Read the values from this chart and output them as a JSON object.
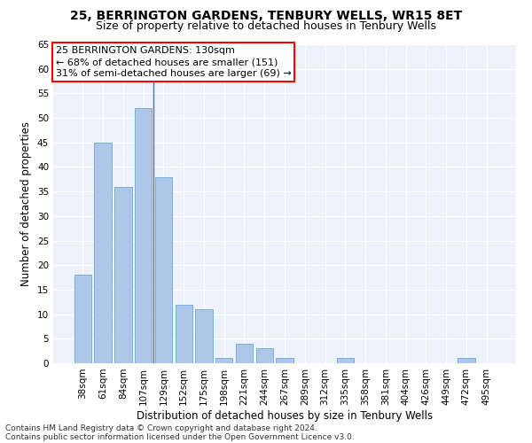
{
  "title1": "25, BERRINGTON GARDENS, TENBURY WELLS, WR15 8ET",
  "title2": "Size of property relative to detached houses in Tenbury Wells",
  "xlabel": "Distribution of detached houses by size in Tenbury Wells",
  "ylabel": "Number of detached properties",
  "categories": [
    "38sqm",
    "61sqm",
    "84sqm",
    "107sqm",
    "129sqm",
    "152sqm",
    "175sqm",
    "198sqm",
    "221sqm",
    "244sqm",
    "267sqm",
    "289sqm",
    "312sqm",
    "335sqm",
    "358sqm",
    "381sqm",
    "404sqm",
    "426sqm",
    "449sqm",
    "472sqm",
    "495sqm"
  ],
  "values": [
    18,
    45,
    36,
    52,
    38,
    12,
    11,
    1,
    4,
    3,
    1,
    0,
    0,
    1,
    0,
    0,
    0,
    0,
    0,
    1,
    0
  ],
  "bar_color": "#aec6e8",
  "bar_edge_color": "#6aaad4",
  "vline_x": 3.5,
  "vline_color": "#4472c4",
  "annotation_text": "25 BERRINGTON GARDENS: 130sqm\n← 68% of detached houses are smaller (151)\n31% of semi-detached houses are larger (69) →",
  "annotation_box_color": "white",
  "annotation_box_edge_color": "red",
  "bg_color": "#eef2fb",
  "grid_color": "white",
  "ylim": [
    0,
    65
  ],
  "yticks": [
    0,
    5,
    10,
    15,
    20,
    25,
    30,
    35,
    40,
    45,
    50,
    55,
    60,
    65
  ],
  "footer1": "Contains HM Land Registry data © Crown copyright and database right 2024.",
  "footer2": "Contains public sector information licensed under the Open Government Licence v3.0.",
  "title_fontsize": 10,
  "subtitle_fontsize": 9,
  "axis_label_fontsize": 8.5,
  "tick_fontsize": 7.5,
  "annotation_fontsize": 8,
  "footer_fontsize": 6.5
}
